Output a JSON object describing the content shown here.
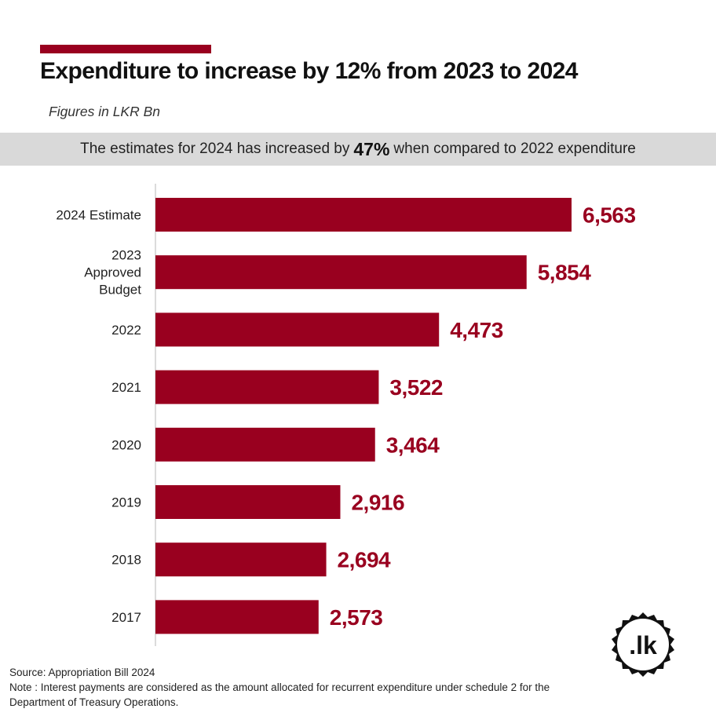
{
  "header": {
    "title": "Expenditure to increase by 12% from 2023 to 2024",
    "subtitle": "Figures in LKR Bn"
  },
  "callout": {
    "prefix": "The estimates for 2024 has increased by",
    "highlight": "47%",
    "suffix": "when compared to 2022 expenditure"
  },
  "chart_data": {
    "type": "bar",
    "orientation": "horizontal",
    "categories": [
      "2024 Estimate",
      "2023 Approved Budget",
      "2022",
      "2021",
      "2020",
      "2019",
      "2018",
      "2017"
    ],
    "values": [
      6563,
      5854,
      4473,
      3522,
      3464,
      2916,
      2694,
      2573
    ],
    "value_labels": [
      "6,563",
      "5,854",
      "4,473",
      "3,522",
      "3,464",
      "2,916",
      "2,694",
      "2,573"
    ],
    "bar_color": "#99001f",
    "grid": false
  },
  "footer": {
    "source": "Source: Appropriation Bill 2024",
    "note": "Note : Interest payments are considered as the amount allocated for recurrent expenditure under schedule 2 for the Department of Treasury Operations."
  },
  "logo": {
    "text": ".lk",
    "icon": "lk-seal-logo"
  },
  "colors": {
    "accent": "#99001f",
    "callout_bg": "#d9d9d9"
  }
}
